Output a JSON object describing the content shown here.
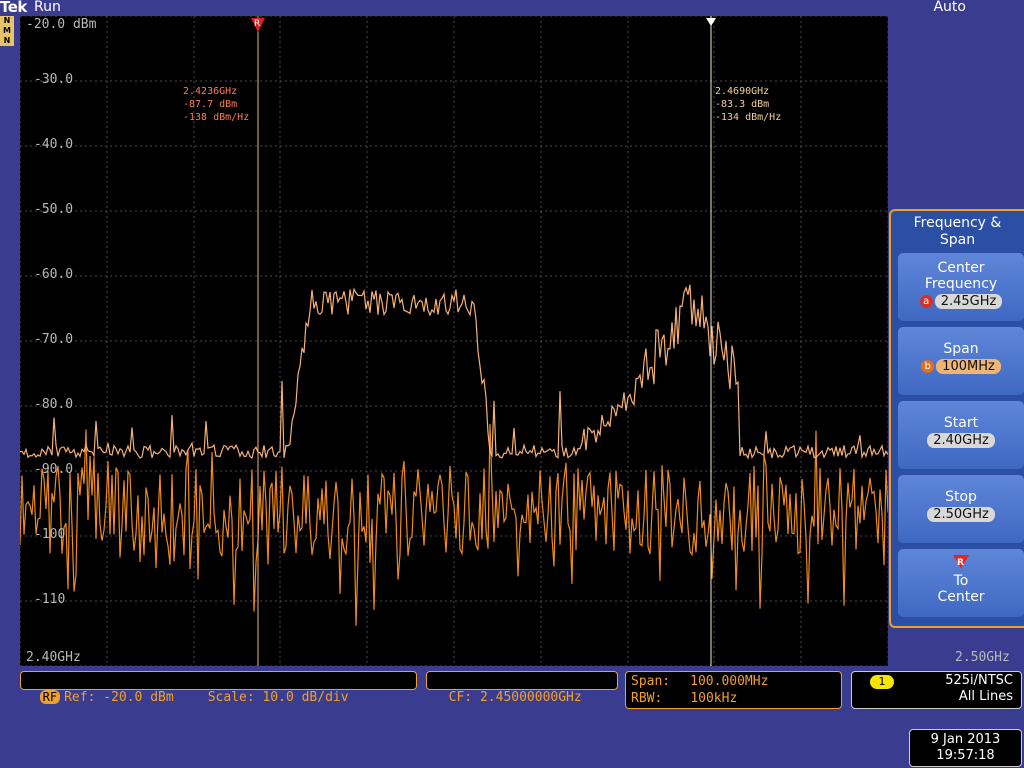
{
  "header": {
    "brand": "Tek",
    "run_state": "Run",
    "trigger_mode": "Auto",
    "mode_indicator": "N\nM\nN"
  },
  "display": {
    "ref_level": "-20.0 dBm",
    "y_labels": [
      "-30.0",
      "-40.0",
      "-50.0",
      "-60.0",
      "-70.0",
      "-80.0",
      "-90.0",
      "-100",
      "-110"
    ],
    "x_start": "2.40GHz",
    "x_stop": "2.50GHz",
    "marker_r": {
      "lines": [
        "2.4236GHz",
        "-87.7 dBm",
        "-138 dBm/Hz"
      ],
      "glyph": "R"
    },
    "marker_a": {
      "lines": [
        "2.4690GHz",
        "-83.3 dBm",
        "-134 dBm/Hz"
      ]
    },
    "colors": {
      "trace_max": "#f5b077",
      "trace_live": "#f08a18",
      "grid": "#5a5a5a",
      "panel_border": "#f0a028"
    }
  },
  "menu": {
    "title": "Frequency &\nSpan",
    "buttons": [
      {
        "label": "Center\nFrequency",
        "knob": "a",
        "value": "2.45GHz"
      },
      {
        "label": "Span",
        "knob": "b",
        "value": "100MHz"
      },
      {
        "label": "Start",
        "value": "2.40GHz"
      },
      {
        "label": "Stop",
        "value": "2.50GHz"
      },
      {
        "label": "To\nCenter",
        "glyph": "R"
      }
    ]
  },
  "status": {
    "rf_badge": "RF",
    "ref": "Ref: -20.0 dBm",
    "scale": "Scale: 10.0 dB/div",
    "cf": "CF: 2.45000000GHz",
    "span_label": "Span:",
    "span_value": "100.000MHz",
    "rbw_label": "RBW:",
    "rbw_value": "100kHz",
    "trigger_channel": "1",
    "trigger_line1": "525i/NTSC",
    "trigger_line2": "All Lines",
    "date": "9 Jan 2013",
    "time": "19:57:18"
  }
}
